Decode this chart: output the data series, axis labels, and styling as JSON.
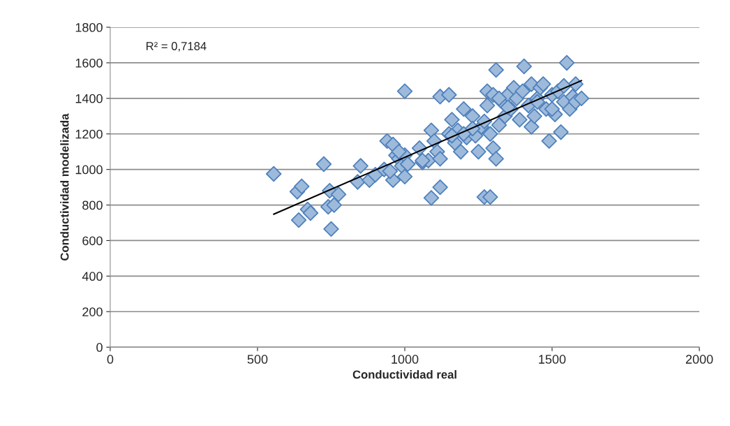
{
  "chart_data": {
    "type": "scatter",
    "xlabel": "Conductividad real",
    "ylabel": "Conductividad modelizada",
    "annotations": [
      "R² = 0,7184"
    ],
    "xlim": [
      0,
      2000
    ],
    "xticks": [
      0,
      500,
      1000,
      1500,
      2000
    ],
    "ylim": [
      0,
      1800
    ],
    "yticks": [
      0,
      200,
      400,
      600,
      800,
      1000,
      1200,
      1400,
      1600,
      1800
    ],
    "grid": "y",
    "marker": "diamond",
    "legend": false,
    "series": [
      {
        "color": "#4f81bd",
        "x": [
          555,
          635,
          650,
          640,
          670,
          680,
          725,
          740,
          745,
          750,
          760,
          775,
          840,
          850,
          880,
          900,
          930,
          940,
          960,
          960,
          970,
          980,
          990,
          1000,
          1000,
          1000,
          1010,
          1050,
          1060,
          1080,
          1090,
          1090,
          1100,
          1110,
          1120,
          1120,
          1120,
          1150,
          1150,
          1160,
          1170,
          1180,
          1190,
          1200,
          1210,
          1230,
          1240,
          1250,
          1260,
          1270,
          1280,
          1280,
          1290,
          1290,
          1300,
          1300,
          1310,
          1310,
          1320,
          1330,
          1340,
          1350,
          1360,
          1370,
          1380,
          1390,
          1400,
          1405,
          1420,
          1430,
          1430,
          1440,
          1450,
          1460,
          1470,
          1480,
          1490,
          1500,
          1510,
          1520,
          1530,
          1540,
          1550,
          1560,
          1570,
          1580,
          1580,
          1600,
          1540,
          1500,
          1450,
          1350,
          1320,
          1270,
          1230,
          1200,
          1160,
          1060,
          980,
          950
        ],
        "values": [
          975,
          875,
          905,
          715,
          775,
          755,
          1030,
          790,
          880,
          665,
          800,
          860,
          930,
          1020,
          940,
          970,
          1000,
          1160,
          1140,
          940,
          1080,
          1060,
          1020,
          1440,
          960,
          1080,
          1030,
          1120,
          1040,
          1050,
          840,
          1220,
          1160,
          1100,
          1060,
          900,
          1410,
          1420,
          1200,
          1280,
          1150,
          1220,
          1100,
          1340,
          1180,
          1300,
          1190,
          1100,
          1240,
          845,
          1360,
          1440,
          845,
          1200,
          1120,
          1420,
          1560,
          1060,
          1250,
          1380,
          1300,
          1420,
          1340,
          1460,
          1400,
          1280,
          1440,
          1580,
          1360,
          1240,
          1480,
          1300,
          1400,
          1460,
          1480,
          1340,
          1160,
          1420,
          1310,
          1440,
          1210,
          1380,
          1600,
          1340,
          1410,
          1380,
          1480,
          1400,
          1470,
          1340,
          1380,
          1350,
          1400,
          1270,
          1230,
          1200,
          1190,
          1050,
          1100,
          990
        ]
      },
      {
        "type": "line",
        "color": "#000000",
        "marker": "none",
        "x": [
          555,
          1600
        ],
        "values": [
          748,
          1500
        ]
      }
    ]
  }
}
